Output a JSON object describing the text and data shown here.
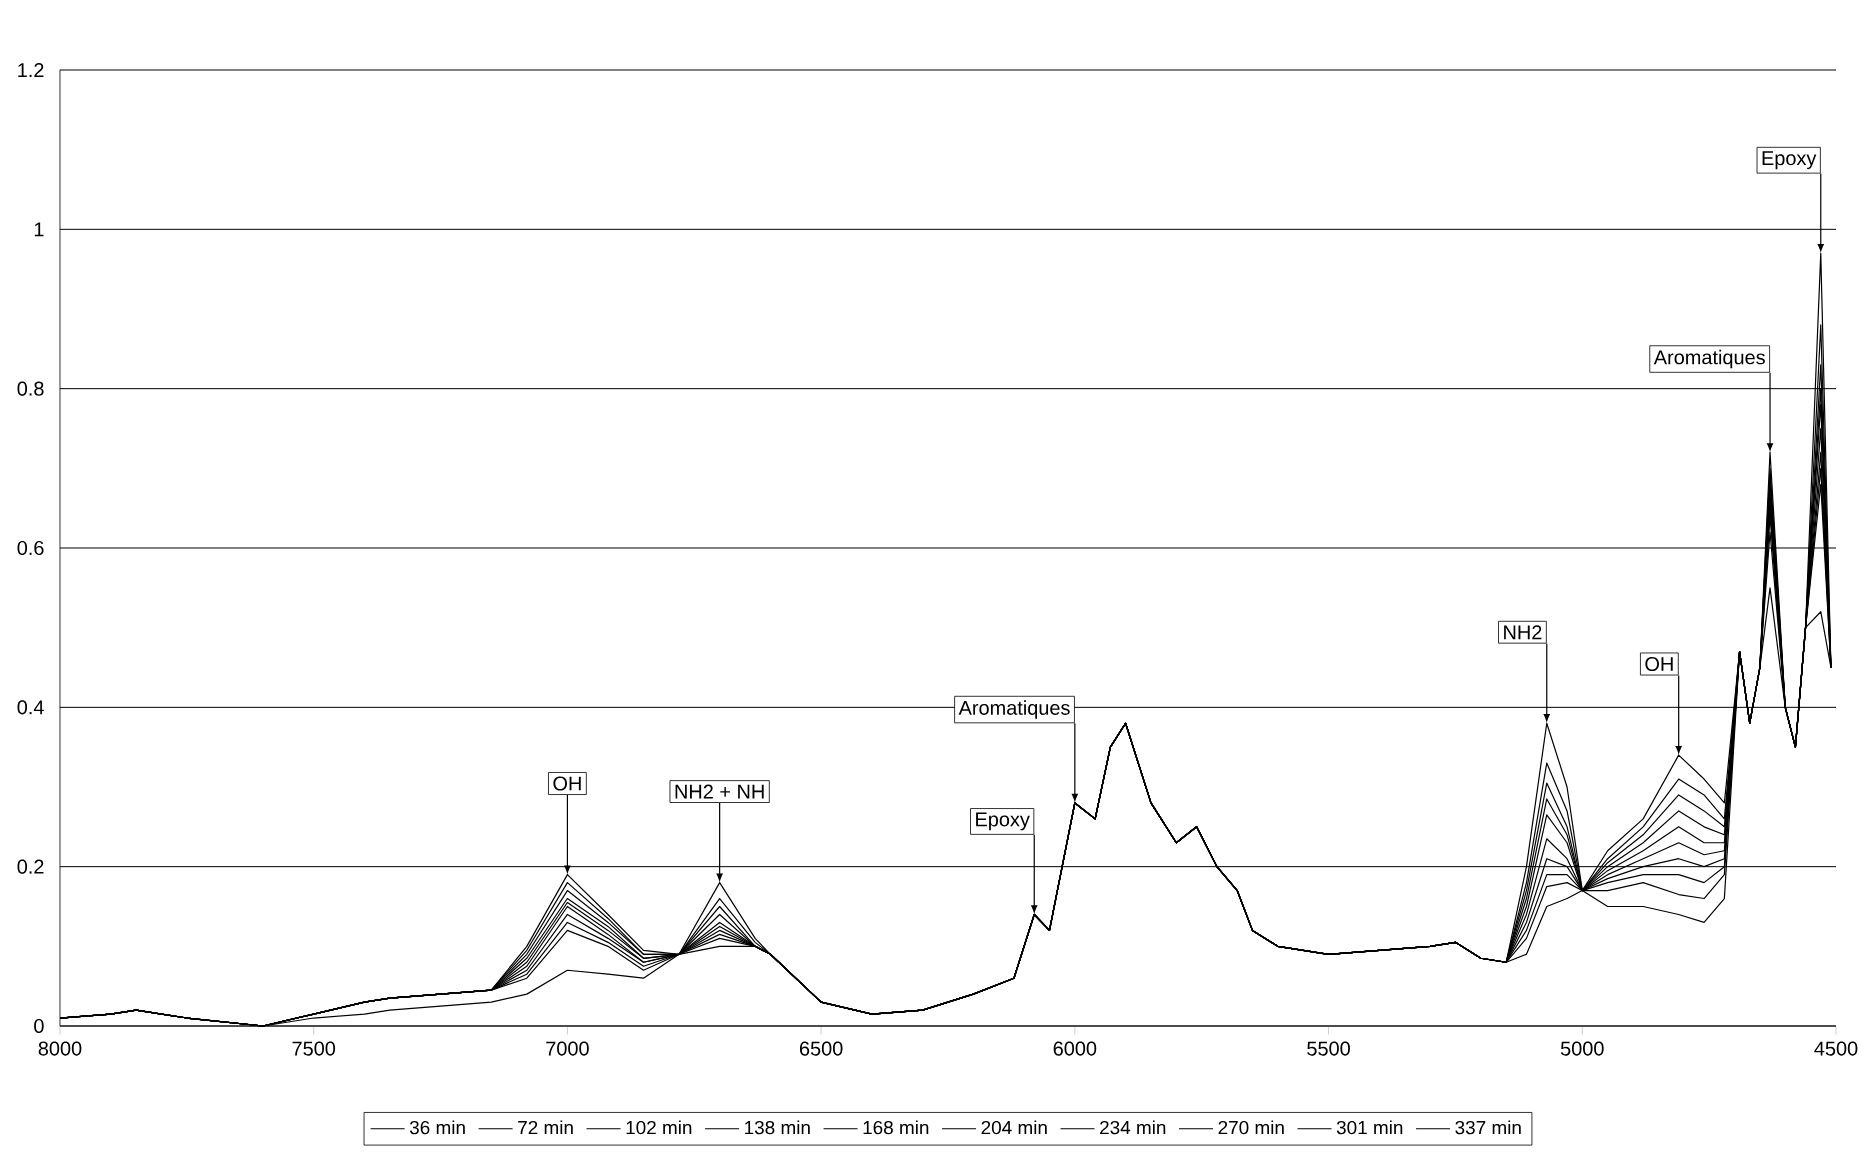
{
  "chart_data": {
    "type": "line",
    "xlim": [
      8000,
      4500
    ],
    "xticks": [
      8000,
      7500,
      7000,
      6500,
      6000,
      5500,
      5000,
      4500
    ],
    "ylim": [
      0,
      1.2
    ],
    "yticks": [
      0,
      0.2,
      0.4,
      0.6,
      0.8,
      1,
      1.2
    ],
    "grid": "y",
    "legend": "bottom",
    "marker": "none",
    "line_style": "solid",
    "x": [
      8000,
      7900,
      7850,
      7750,
      7600,
      7500,
      7400,
      7350,
      7250,
      7150,
      7080,
      7000,
      6920,
      6850,
      6780,
      6700,
      6630,
      6600,
      6500,
      6400,
      6300,
      6200,
      6120,
      6080,
      6050,
      6000,
      5960,
      5930,
      5900,
      5850,
      5800,
      5760,
      5720,
      5680,
      5650,
      5600,
      5500,
      5400,
      5300,
      5250,
      5200,
      5150,
      5110,
      5070,
      5030,
      5000,
      4950,
      4880,
      4810,
      4760,
      4720,
      4690,
      4670,
      4650,
      4630,
      4600,
      4580,
      4560,
      4530,
      4510
    ],
    "series": [
      {
        "name": "36 min",
        "color": "#000000",
        "values": [
          0.01,
          0.015,
          0.02,
          0.01,
          0.0,
          0.01,
          0.015,
          0.02,
          0.025,
          0.03,
          0.04,
          0.07,
          0.065,
          0.06,
          0.09,
          0.18,
          0.11,
          0.09,
          0.03,
          0.015,
          0.02,
          0.04,
          0.06,
          0.14,
          0.12,
          0.28,
          0.26,
          0.35,
          0.38,
          0.28,
          0.23,
          0.25,
          0.2,
          0.17,
          0.12,
          0.1,
          0.09,
          0.095,
          0.1,
          0.105,
          0.085,
          0.08,
          0.2,
          0.38,
          0.3,
          0.17,
          0.15,
          0.15,
          0.14,
          0.13,
          0.16,
          0.47,
          0.38,
          0.45,
          0.72,
          0.4,
          0.35,
          0.5,
          0.97,
          0.45
        ]
      },
      {
        "name": "72 min",
        "color": "#000000",
        "values": [
          0.01,
          0.015,
          0.02,
          0.01,
          0.0,
          0.015,
          0.03,
          0.035,
          0.04,
          0.045,
          0.06,
          0.12,
          0.1,
          0.07,
          0.09,
          0.16,
          0.105,
          0.09,
          0.03,
          0.015,
          0.02,
          0.04,
          0.06,
          0.14,
          0.12,
          0.28,
          0.26,
          0.35,
          0.38,
          0.28,
          0.23,
          0.25,
          0.2,
          0.17,
          0.12,
          0.1,
          0.09,
          0.095,
          0.1,
          0.105,
          0.085,
          0.08,
          0.18,
          0.33,
          0.27,
          0.17,
          0.17,
          0.18,
          0.165,
          0.16,
          0.19,
          0.47,
          0.38,
          0.45,
          0.7,
          0.4,
          0.35,
          0.5,
          0.88,
          0.45
        ]
      },
      {
        "name": "102 min",
        "color": "#000000",
        "values": [
          0.01,
          0.015,
          0.02,
          0.01,
          0.0,
          0.015,
          0.03,
          0.035,
          0.04,
          0.045,
          0.065,
          0.13,
          0.105,
          0.075,
          0.09,
          0.15,
          0.1,
          0.09,
          0.03,
          0.015,
          0.02,
          0.04,
          0.06,
          0.14,
          0.12,
          0.28,
          0.26,
          0.35,
          0.38,
          0.28,
          0.23,
          0.25,
          0.2,
          0.17,
          0.12,
          0.1,
          0.09,
          0.095,
          0.1,
          0.105,
          0.085,
          0.08,
          0.17,
          0.305,
          0.25,
          0.17,
          0.18,
          0.19,
          0.19,
          0.18,
          0.2,
          0.47,
          0.38,
          0.45,
          0.69,
          0.4,
          0.35,
          0.5,
          0.83,
          0.45
        ]
      },
      {
        "name": "138 min",
        "color": "#000000",
        "values": [
          0.01,
          0.015,
          0.02,
          0.01,
          0.0,
          0.015,
          0.03,
          0.035,
          0.04,
          0.045,
          0.07,
          0.14,
          0.11,
          0.08,
          0.09,
          0.14,
          0.1,
          0.09,
          0.03,
          0.015,
          0.02,
          0.04,
          0.06,
          0.14,
          0.12,
          0.28,
          0.26,
          0.35,
          0.38,
          0.28,
          0.23,
          0.25,
          0.2,
          0.17,
          0.12,
          0.1,
          0.09,
          0.095,
          0.1,
          0.105,
          0.085,
          0.08,
          0.16,
          0.285,
          0.24,
          0.17,
          0.185,
          0.2,
          0.21,
          0.2,
          0.21,
          0.47,
          0.38,
          0.45,
          0.68,
          0.4,
          0.35,
          0.5,
          0.8,
          0.45
        ]
      },
      {
        "name": "168 min",
        "color": "#000000",
        "values": [
          0.01,
          0.015,
          0.02,
          0.01,
          0.0,
          0.015,
          0.03,
          0.035,
          0.04,
          0.045,
          0.075,
          0.15,
          0.115,
          0.08,
          0.09,
          0.13,
          0.1,
          0.09,
          0.03,
          0.015,
          0.02,
          0.04,
          0.06,
          0.14,
          0.12,
          0.28,
          0.26,
          0.35,
          0.38,
          0.28,
          0.23,
          0.25,
          0.2,
          0.17,
          0.12,
          0.1,
          0.09,
          0.095,
          0.1,
          0.105,
          0.085,
          0.08,
          0.15,
          0.265,
          0.23,
          0.17,
          0.19,
          0.21,
          0.23,
          0.215,
          0.22,
          0.47,
          0.38,
          0.45,
          0.67,
          0.4,
          0.35,
          0.5,
          0.78,
          0.45
        ]
      },
      {
        "name": "204 min",
        "color": "#000000",
        "values": [
          0.01,
          0.015,
          0.02,
          0.01,
          0.0,
          0.015,
          0.03,
          0.035,
          0.04,
          0.045,
          0.08,
          0.155,
          0.12,
          0.085,
          0.09,
          0.125,
          0.1,
          0.09,
          0.03,
          0.015,
          0.02,
          0.04,
          0.06,
          0.14,
          0.12,
          0.28,
          0.26,
          0.35,
          0.38,
          0.28,
          0.23,
          0.25,
          0.2,
          0.17,
          0.12,
          0.1,
          0.09,
          0.095,
          0.1,
          0.105,
          0.085,
          0.08,
          0.14,
          0.235,
          0.21,
          0.17,
          0.195,
          0.22,
          0.25,
          0.23,
          0.23,
          0.47,
          0.38,
          0.45,
          0.66,
          0.4,
          0.35,
          0.5,
          0.75,
          0.45
        ]
      },
      {
        "name": "234 min",
        "color": "#000000",
        "values": [
          0.01,
          0.015,
          0.02,
          0.01,
          0.0,
          0.015,
          0.03,
          0.035,
          0.04,
          0.045,
          0.085,
          0.16,
          0.125,
          0.085,
          0.09,
          0.12,
          0.1,
          0.09,
          0.03,
          0.015,
          0.02,
          0.04,
          0.06,
          0.14,
          0.12,
          0.28,
          0.26,
          0.35,
          0.38,
          0.28,
          0.23,
          0.25,
          0.2,
          0.17,
          0.12,
          0.1,
          0.09,
          0.095,
          0.1,
          0.105,
          0.085,
          0.08,
          0.13,
          0.21,
          0.2,
          0.17,
          0.2,
          0.23,
          0.27,
          0.25,
          0.24,
          0.47,
          0.38,
          0.45,
          0.65,
          0.4,
          0.35,
          0.5,
          0.72,
          0.45
        ]
      },
      {
        "name": "270 min",
        "color": "#000000",
        "values": [
          0.01,
          0.015,
          0.02,
          0.01,
          0.0,
          0.015,
          0.03,
          0.035,
          0.04,
          0.045,
          0.09,
          0.17,
          0.13,
          0.09,
          0.09,
          0.115,
          0.1,
          0.09,
          0.03,
          0.015,
          0.02,
          0.04,
          0.06,
          0.14,
          0.12,
          0.28,
          0.26,
          0.35,
          0.38,
          0.28,
          0.23,
          0.25,
          0.2,
          0.17,
          0.12,
          0.1,
          0.09,
          0.095,
          0.1,
          0.105,
          0.085,
          0.08,
          0.12,
          0.19,
          0.19,
          0.17,
          0.205,
          0.24,
          0.29,
          0.27,
          0.25,
          0.47,
          0.38,
          0.45,
          0.64,
          0.4,
          0.35,
          0.5,
          0.7,
          0.45
        ]
      },
      {
        "name": "301 min",
        "color": "#000000",
        "values": [
          0.01,
          0.015,
          0.02,
          0.01,
          0.0,
          0.015,
          0.03,
          0.035,
          0.04,
          0.045,
          0.095,
          0.18,
          0.135,
          0.09,
          0.09,
          0.11,
          0.1,
          0.09,
          0.03,
          0.015,
          0.02,
          0.04,
          0.06,
          0.14,
          0.12,
          0.28,
          0.26,
          0.35,
          0.38,
          0.28,
          0.23,
          0.25,
          0.2,
          0.17,
          0.12,
          0.1,
          0.09,
          0.095,
          0.1,
          0.105,
          0.085,
          0.08,
          0.11,
          0.175,
          0.18,
          0.17,
          0.21,
          0.25,
          0.31,
          0.29,
          0.26,
          0.47,
          0.38,
          0.45,
          0.62,
          0.4,
          0.35,
          0.5,
          0.68,
          0.45
        ]
      },
      {
        "name": "337 min",
        "color": "#000000",
        "values": [
          0.01,
          0.015,
          0.02,
          0.01,
          0.0,
          0.015,
          0.03,
          0.035,
          0.04,
          0.045,
          0.1,
          0.19,
          0.14,
          0.095,
          0.09,
          0.1,
          0.1,
          0.09,
          0.03,
          0.015,
          0.02,
          0.04,
          0.06,
          0.14,
          0.12,
          0.28,
          0.26,
          0.35,
          0.38,
          0.28,
          0.23,
          0.25,
          0.2,
          0.17,
          0.12,
          0.1,
          0.09,
          0.095,
          0.1,
          0.105,
          0.085,
          0.08,
          0.09,
          0.15,
          0.16,
          0.17,
          0.22,
          0.26,
          0.34,
          0.31,
          0.28,
          0.47,
          0.38,
          0.45,
          0.55,
          0.4,
          0.35,
          0.5,
          0.52,
          0.45
        ]
      }
    ],
    "annotations": [
      {
        "text": "OH",
        "x": 7000,
        "y": 0.19
      },
      {
        "text": "NH2 + NH",
        "x": 6700,
        "y": 0.18
      },
      {
        "text": "Epoxy",
        "x": 6080,
        "y": 0.14
      },
      {
        "text": "Aromatiques",
        "x": 6000,
        "y": 0.28
      },
      {
        "text": "NH2",
        "x": 5070,
        "y": 0.38
      },
      {
        "text": "OH",
        "x": 4810,
        "y": 0.34
      },
      {
        "text": "Aromatiques",
        "x": 4630,
        "y": 0.72
      },
      {
        "text": "Epoxy",
        "x": 4530,
        "y": 0.97
      }
    ]
  }
}
